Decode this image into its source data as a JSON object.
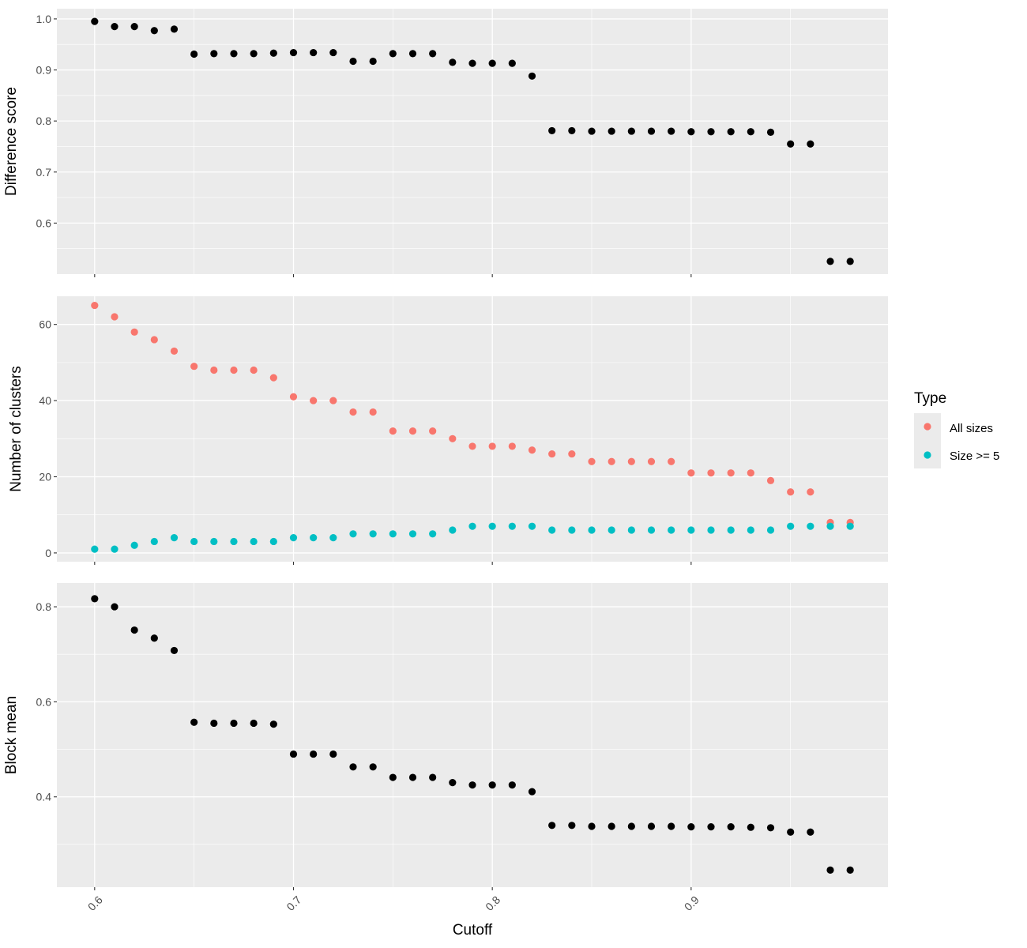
{
  "colors": {
    "panel_bg": "#EBEBEB",
    "grid": "#FFFFFF",
    "point_default": "#000000",
    "all_sizes": "#F8766D",
    "size_ge_5": "#00BFC4"
  },
  "chart_data": [
    {
      "type": "scatter",
      "ylabel": "Difference score",
      "ylim": [
        0.5,
        1.02
      ],
      "yticks": [
        0.6,
        0.7,
        0.8,
        0.9,
        1.0
      ],
      "ytick_labels": [
        "0.6",
        "0.7",
        "0.8",
        "0.9",
        "1.0"
      ],
      "grid": true,
      "series": [
        {
          "x": [
            0.6,
            0.61,
            0.62,
            0.63,
            0.64,
            0.65,
            0.66,
            0.67,
            0.68,
            0.69,
            0.7,
            0.71,
            0.72,
            0.73,
            0.74,
            0.75,
            0.76,
            0.77,
            0.78,
            0.79,
            0.8,
            0.81,
            0.82,
            0.83,
            0.84,
            0.85,
            0.86,
            0.87,
            0.88,
            0.89,
            0.9,
            0.91,
            0.92,
            0.93,
            0.94,
            0.95,
            0.96,
            0.97,
            0.98
          ],
          "y": [
            0.995,
            0.985,
            0.985,
            0.977,
            0.98,
            0.931,
            0.932,
            0.932,
            0.932,
            0.933,
            0.934,
            0.934,
            0.934,
            0.917,
            0.917,
            0.932,
            0.932,
            0.932,
            0.915,
            0.913,
            0.913,
            0.913,
            0.888,
            0.781,
            0.781,
            0.78,
            0.78,
            0.78,
            0.78,
            0.78,
            0.779,
            0.779,
            0.779,
            0.779,
            0.778,
            0.755,
            0.755,
            0.525,
            0.525
          ]
        }
      ]
    },
    {
      "type": "scatter",
      "ylabel": "Number of clusters",
      "ylim": [
        -2.3,
        67.4
      ],
      "yticks": [
        0,
        20,
        40,
        60
      ],
      "ytick_labels": [
        "0",
        "20",
        "40",
        "60"
      ],
      "grid": true,
      "legend": {
        "title": "Type",
        "position": "right",
        "entries": [
          "All sizes",
          "Size >= 5"
        ]
      },
      "series": [
        {
          "name": "All sizes",
          "x": [
            0.6,
            0.61,
            0.62,
            0.63,
            0.64,
            0.65,
            0.66,
            0.67,
            0.68,
            0.69,
            0.7,
            0.71,
            0.72,
            0.73,
            0.74,
            0.75,
            0.76,
            0.77,
            0.78,
            0.79,
            0.8,
            0.81,
            0.82,
            0.83,
            0.84,
            0.85,
            0.86,
            0.87,
            0.88,
            0.89,
            0.9,
            0.91,
            0.92,
            0.93,
            0.94,
            0.95,
            0.96,
            0.97,
            0.98
          ],
          "y": [
            65,
            62,
            58,
            56,
            53,
            49,
            48,
            48,
            48,
            46,
            41,
            40,
            40,
            37,
            37,
            32,
            32,
            32,
            30,
            28,
            28,
            28,
            27,
            26,
            26,
            24,
            24,
            24,
            24,
            24,
            21,
            21,
            21,
            21,
            19,
            16,
            16,
            8,
            8
          ]
        },
        {
          "name": "Size >= 5",
          "x": [
            0.6,
            0.61,
            0.62,
            0.63,
            0.64,
            0.65,
            0.66,
            0.67,
            0.68,
            0.69,
            0.7,
            0.71,
            0.72,
            0.73,
            0.74,
            0.75,
            0.76,
            0.77,
            0.78,
            0.79,
            0.8,
            0.81,
            0.82,
            0.83,
            0.84,
            0.85,
            0.86,
            0.87,
            0.88,
            0.89,
            0.9,
            0.91,
            0.92,
            0.93,
            0.94,
            0.95,
            0.96,
            0.97,
            0.98
          ],
          "y": [
            1,
            1,
            2,
            3,
            4,
            3,
            3,
            3,
            3,
            3,
            4,
            4,
            4,
            5,
            5,
            5,
            5,
            5,
            6,
            7,
            7,
            7,
            7,
            6,
            6,
            6,
            6,
            6,
            6,
            6,
            6,
            6,
            6,
            6,
            6,
            7,
            7,
            7,
            7
          ]
        }
      ]
    },
    {
      "type": "scatter",
      "ylabel": "Block mean",
      "xlabel": "Cutoff",
      "ylim": [
        0.21,
        0.85
      ],
      "yticks": [
        0.4,
        0.6,
        0.8
      ],
      "ytick_labels": [
        "0.4",
        "0.6",
        "0.8"
      ],
      "xlim": [
        0.581,
        0.999
      ],
      "xticks": [
        0.6,
        0.7,
        0.8,
        0.9
      ],
      "xtick_labels": [
        "0.6",
        "0.7",
        "0.8",
        "0.9"
      ],
      "grid": true,
      "series": [
        {
          "x": [
            0.6,
            0.61,
            0.62,
            0.63,
            0.64,
            0.65,
            0.66,
            0.67,
            0.68,
            0.69,
            0.7,
            0.71,
            0.72,
            0.73,
            0.74,
            0.75,
            0.76,
            0.77,
            0.78,
            0.79,
            0.8,
            0.81,
            0.82,
            0.83,
            0.84,
            0.85,
            0.86,
            0.87,
            0.88,
            0.89,
            0.9,
            0.91,
            0.92,
            0.93,
            0.94,
            0.95,
            0.96,
            0.97,
            0.98
          ],
          "y": [
            0.817,
            0.8,
            0.751,
            0.734,
            0.708,
            0.557,
            0.555,
            0.555,
            0.555,
            0.553,
            0.49,
            0.49,
            0.49,
            0.463,
            0.463,
            0.441,
            0.441,
            0.441,
            0.43,
            0.425,
            0.425,
            0.425,
            0.411,
            0.34,
            0.34,
            0.338,
            0.338,
            0.338,
            0.338,
            0.338,
            0.337,
            0.337,
            0.337,
            0.336,
            0.335,
            0.326,
            0.326,
            0.246,
            0.246
          ]
        }
      ]
    }
  ]
}
